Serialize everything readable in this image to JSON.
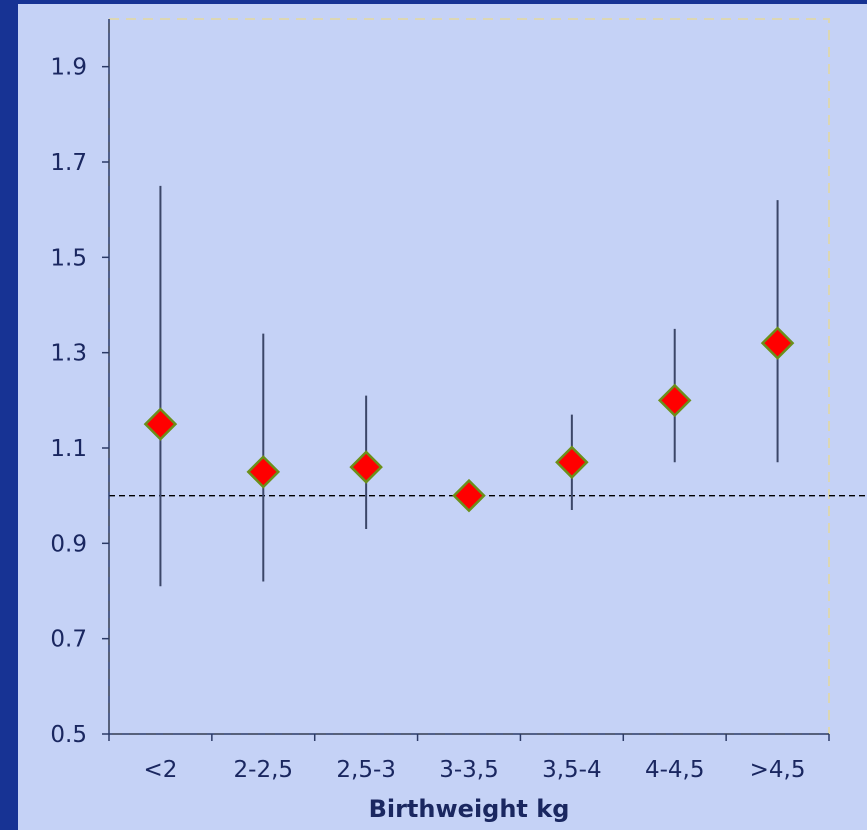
{
  "colors": {
    "border": "#173394",
    "panel": "#c5d2f6",
    "axis": "#2b3a66",
    "tick_label": "#1a2760",
    "marker_fill": "#ff0000",
    "marker_stroke": "#6b8f1a",
    "error_bar": "#3b4668",
    "reference_line": "#000000",
    "plot_border": "#dcd7b4"
  },
  "chart_data": {
    "type": "scatter",
    "title": "",
    "xlabel": "Birthweight kg",
    "ylabel": "",
    "ylim": [
      0.5,
      2.0
    ],
    "yticks": [
      0.5,
      0.7,
      0.9,
      1.1,
      1.3,
      1.5,
      1.7,
      1.9
    ],
    "ytick_labels": [
      "0.5",
      "0.7",
      "0.9",
      "1.1",
      "1.3",
      "1.5",
      "1.7",
      "1.9"
    ],
    "categories": [
      "<2",
      "2-2,5",
      "2,5-3",
      "3-3,5",
      "3,5-4",
      "4-4,5",
      ">4,5"
    ],
    "values": [
      1.15,
      1.05,
      1.06,
      1.0,
      1.07,
      1.2,
      1.32
    ],
    "lower": [
      0.81,
      0.82,
      0.93,
      1.0,
      0.97,
      1.07,
      1.07
    ],
    "upper": [
      1.65,
      1.34,
      1.21,
      1.0,
      1.17,
      1.35,
      1.62
    ],
    "reference_line": 1.0,
    "marker": "diamond",
    "grid": false,
    "legend": "none"
  }
}
